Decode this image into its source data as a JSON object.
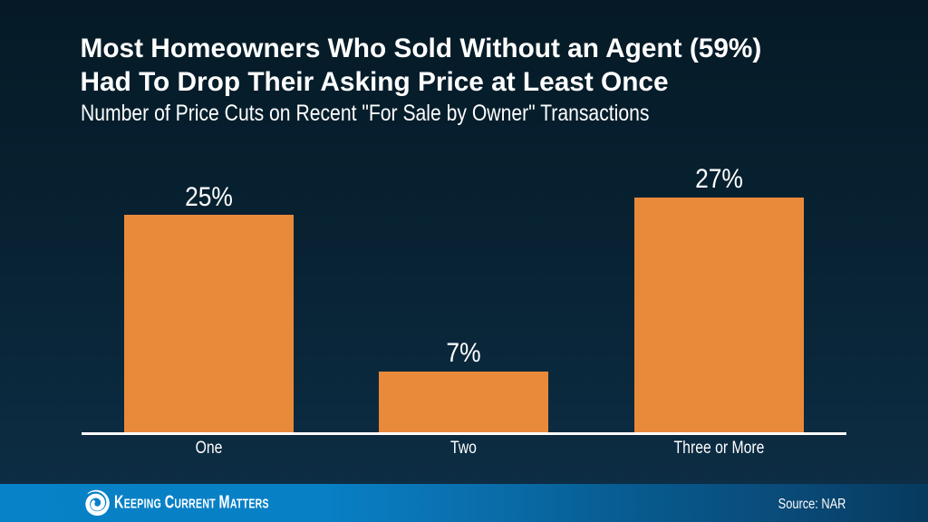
{
  "header": {
    "title_line1": "Most Homeowners Who Sold Without an Agent (59%)",
    "title_line2": "Had To Drop Their Asking Price at Least Once",
    "subtitle": "Number of Price Cuts on Recent \"For Sale by Owner\" Transactions"
  },
  "chart_data": {
    "type": "bar",
    "categories": [
      "One",
      "Two",
      "Three or More"
    ],
    "values": [
      25,
      7,
      27
    ],
    "value_labels": [
      "25%",
      "7%",
      "27%"
    ],
    "title": "Most Homeowners Who Sold Without an Agent (59%) Had To Drop Their Asking Price at Least Once",
    "subtitle": "Number of Price Cuts on Recent \"For Sale by Owner\" Transactions",
    "xlabel": "",
    "ylabel": "",
    "ylim": [
      0,
      28
    ],
    "bar_color": "#e9893a",
    "label_color": "#ffffff",
    "axis_line_color": "#ffffff",
    "grid": false,
    "legend": false
  },
  "footer": {
    "brand_name": "Keeping Current Matters",
    "source": "Source: NAR"
  },
  "colors": {
    "background_top": "#051a26",
    "background_bottom": "#0d2d44",
    "bar_orange": "#e9893a",
    "footer_blue_left": "#0781c7",
    "footer_blue_right": "#063a5e",
    "text": "#ffffff"
  }
}
